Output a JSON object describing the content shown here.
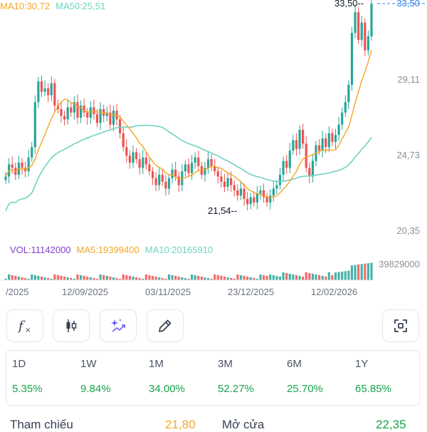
{
  "ma_legend": {
    "ma10": "MA10:30,72",
    "ma50": "MA50:25,51"
  },
  "vol_legend": {
    "vol": "VOL:11142000",
    "ma5": "MA5:19399400",
    "ma10": "MA10:20165910"
  },
  "y_axis": {
    "top": "33,50",
    "l1": "29,11",
    "l2": "24,73",
    "l3": "20,35"
  },
  "annotations": {
    "high": "33,50",
    "low": "21,54"
  },
  "volume_axis_label": "39829000",
  "x_axis": [
    "/2025",
    "12/09/2025",
    "03/11/2025",
    "23/12/2025",
    "12/02/2026"
  ],
  "toolbar": {
    "indicator_icon": "fx-icon",
    "candle_icon": "candlestick-icon",
    "ai_icon": "sparkle-chart-icon",
    "draw_icon": "pencil-icon",
    "fullscreen_icon": "fullscreen-icon"
  },
  "performance": [
    {
      "label": "1D",
      "value": "5.35%"
    },
    {
      "label": "1W",
      "value": "9.84%"
    },
    {
      "label": "1M",
      "value": "34.00%"
    },
    {
      "label": "3M",
      "value": "52.27%"
    },
    {
      "label": "6M",
      "value": "25.70%"
    },
    {
      "label": "1Y",
      "value": "65.85%"
    }
  ],
  "bottom_row": {
    "ref_label": "Tham chiếu",
    "ref_value": "21,80",
    "open_label": "Mở cửa",
    "open_value": "22,35"
  },
  "colors": {
    "up": "#26a69a",
    "down": "#ef5350",
    "ma10": "#f5a623",
    "ma50": "#6fd3c0",
    "vol": "#7e3fd1",
    "positive": "#16a34a",
    "accent": "#2f80ed"
  },
  "chart_data": {
    "type": "candlestick",
    "y_ticks": [
      33.5,
      29.11,
      24.73,
      20.35
    ],
    "high": 33.5,
    "low": 21.54,
    "close_series": [
      23.5,
      24.2,
      24.0,
      23.6,
      24.3,
      24.0,
      23.8,
      24.6,
      25.2,
      27.8,
      29.0,
      28.4,
      28.6,
      28.2,
      28.9,
      27.6,
      27.4,
      27.0,
      26.8,
      27.5,
      27.2,
      27.8,
      26.9,
      27.6,
      27.2,
      26.9,
      27.5,
      27.1,
      26.6,
      27.4,
      27.0,
      27.2,
      26.5,
      27.3,
      26.8,
      26.0,
      25.2,
      24.7,
      24.3,
      24.9,
      24.5,
      24.0,
      24.6,
      24.2,
      23.8,
      23.4,
      23.0,
      23.6,
      23.2,
      22.8,
      23.4,
      23.9,
      23.5,
      23.0,
      23.8,
      24.2,
      23.7,
      24.3,
      24.6,
      24.1,
      23.6,
      24.0,
      24.5,
      24.1,
      23.8,
      23.5,
      23.2,
      22.9,
      23.4,
      23.0,
      22.7,
      22.4,
      22.8,
      22.2,
      21.9,
      22.3,
      22.0,
      22.5,
      22.7,
      22.3,
      22.0,
      22.4,
      22.8,
      23.0,
      23.6,
      24.4,
      24.0,
      25.0,
      25.6,
      25.1,
      26.2,
      25.4,
      24.0,
      23.5,
      24.4,
      25.3,
      25.0,
      25.7,
      25.2,
      26.0,
      25.5,
      25.9,
      26.5,
      27.2,
      27.8,
      28.8,
      31.8,
      33.0,
      31.4,
      32.4,
      30.8,
      31.6,
      33.5
    ]
  }
}
